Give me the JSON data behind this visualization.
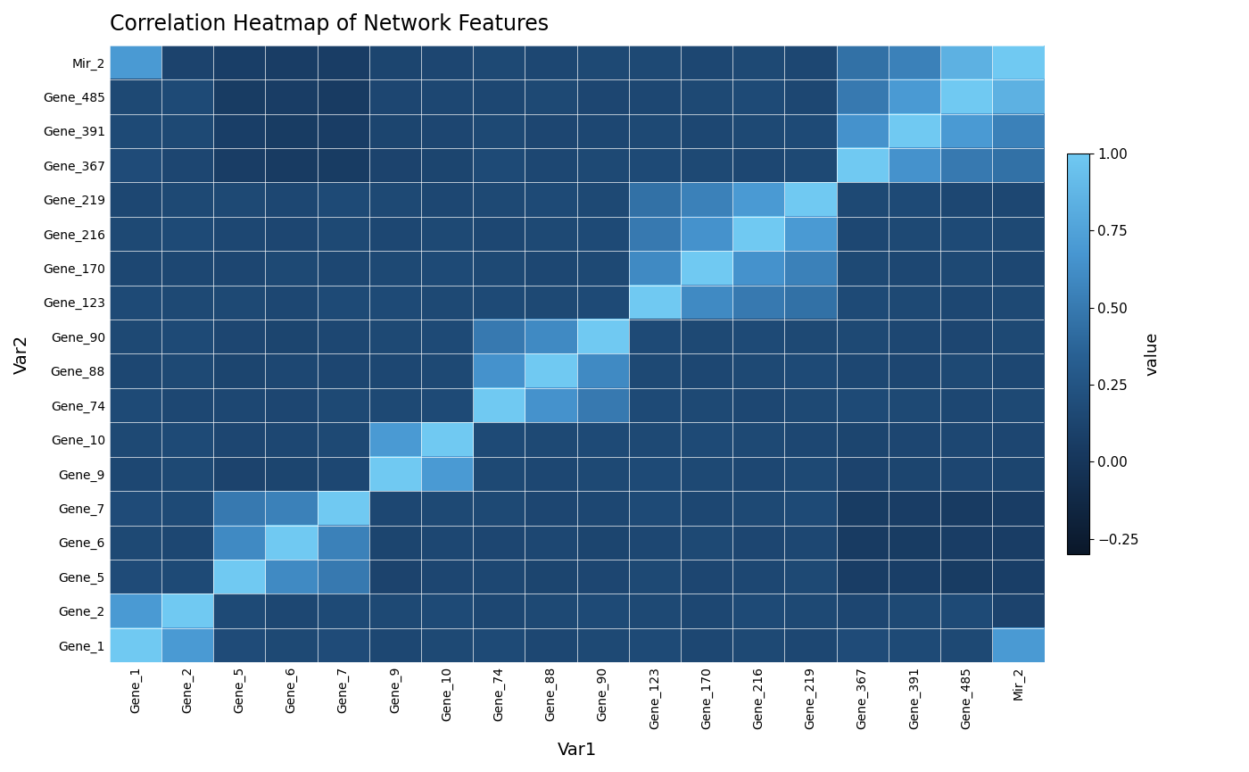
{
  "labels": [
    "Gene_1",
    "Gene_2",
    "Gene_5",
    "Gene_6",
    "Gene_7",
    "Gene_9",
    "Gene_10",
    "Gene_74",
    "Gene_88",
    "Gene_90",
    "Gene_123",
    "Gene_170",
    "Gene_216",
    "Gene_219",
    "Gene_367",
    "Gene_391",
    "Gene_485",
    "Mir_2"
  ],
  "title": "Correlation Heatmap of Network Features",
  "xlabel": "Var1",
  "ylabel": "Var2",
  "colorbar_label": "value",
  "vmin": -0.3,
  "vmax": 1.0,
  "figsize": [
    14.0,
    8.65
  ],
  "dpi": 100,
  "background_color": "#ffffff",
  "colorbar_ticks": [
    1.0,
    0.75,
    0.5,
    0.25,
    0.0,
    -0.25
  ],
  "corr_matrix": [
    [
      1.0,
      0.7,
      0.18,
      0.16,
      0.18,
      0.15,
      0.16,
      0.17,
      0.15,
      0.16,
      0.17,
      0.15,
      0.16,
      0.15,
      0.18,
      0.17,
      0.16,
      0.7
    ],
    [
      0.7,
      1.0,
      0.17,
      0.15,
      0.17,
      0.16,
      0.17,
      0.15,
      0.16,
      0.17,
      0.16,
      0.15,
      0.17,
      0.16,
      0.14,
      0.16,
      0.17,
      0.12
    ],
    [
      0.18,
      0.17,
      1.0,
      0.6,
      0.5,
      0.12,
      0.14,
      0.15,
      0.13,
      0.14,
      0.16,
      0.14,
      0.15,
      0.16,
      0.07,
      0.08,
      0.06,
      0.08
    ],
    [
      0.16,
      0.15,
      0.6,
      1.0,
      0.55,
      0.13,
      0.15,
      0.14,
      0.15,
      0.13,
      0.15,
      0.16,
      0.14,
      0.15,
      0.05,
      0.06,
      0.07,
      0.07
    ],
    [
      0.18,
      0.17,
      0.5,
      0.55,
      1.0,
      0.15,
      0.16,
      0.16,
      0.14,
      0.15,
      0.17,
      0.15,
      0.16,
      0.17,
      0.06,
      0.07,
      0.05,
      0.07
    ],
    [
      0.15,
      0.16,
      0.12,
      0.13,
      0.15,
      1.0,
      0.7,
      0.16,
      0.15,
      0.16,
      0.17,
      0.16,
      0.15,
      0.16,
      0.12,
      0.13,
      0.14,
      0.13
    ],
    [
      0.16,
      0.17,
      0.14,
      0.15,
      0.16,
      0.7,
      1.0,
      0.17,
      0.16,
      0.17,
      0.16,
      0.17,
      0.16,
      0.15,
      0.13,
      0.14,
      0.15,
      0.14
    ],
    [
      0.17,
      0.15,
      0.15,
      0.14,
      0.16,
      0.16,
      0.17,
      1.0,
      0.65,
      0.5,
      0.17,
      0.16,
      0.15,
      0.16,
      0.17,
      0.16,
      0.15,
      0.16
    ],
    [
      0.15,
      0.16,
      0.13,
      0.15,
      0.14,
      0.15,
      0.16,
      0.65,
      1.0,
      0.6,
      0.16,
      0.15,
      0.16,
      0.17,
      0.15,
      0.14,
      0.16,
      0.15
    ],
    [
      0.16,
      0.17,
      0.14,
      0.13,
      0.15,
      0.16,
      0.17,
      0.5,
      0.6,
      1.0,
      0.17,
      0.16,
      0.17,
      0.16,
      0.16,
      0.15,
      0.14,
      0.16
    ],
    [
      0.17,
      0.16,
      0.16,
      0.15,
      0.17,
      0.17,
      0.16,
      0.17,
      0.16,
      0.17,
      1.0,
      0.6,
      0.5,
      0.45,
      0.17,
      0.16,
      0.15,
      0.16
    ],
    [
      0.15,
      0.15,
      0.14,
      0.16,
      0.15,
      0.16,
      0.17,
      0.16,
      0.15,
      0.16,
      0.6,
      1.0,
      0.65,
      0.55,
      0.16,
      0.15,
      0.16,
      0.15
    ],
    [
      0.16,
      0.17,
      0.15,
      0.14,
      0.16,
      0.15,
      0.16,
      0.15,
      0.16,
      0.17,
      0.5,
      0.65,
      1.0,
      0.7,
      0.15,
      0.16,
      0.17,
      0.16
    ],
    [
      0.15,
      0.16,
      0.16,
      0.15,
      0.17,
      0.16,
      0.15,
      0.16,
      0.17,
      0.16,
      0.45,
      0.55,
      0.7,
      1.0,
      0.16,
      0.17,
      0.15,
      0.15
    ],
    [
      0.18,
      0.14,
      0.07,
      0.05,
      0.06,
      0.12,
      0.13,
      0.17,
      0.15,
      0.16,
      0.17,
      0.16,
      0.15,
      0.16,
      1.0,
      0.65,
      0.5,
      0.45
    ],
    [
      0.17,
      0.16,
      0.08,
      0.06,
      0.07,
      0.13,
      0.14,
      0.16,
      0.14,
      0.15,
      0.16,
      0.15,
      0.16,
      0.17,
      0.65,
      1.0,
      0.7,
      0.55
    ],
    [
      0.16,
      0.17,
      0.06,
      0.07,
      0.05,
      0.14,
      0.15,
      0.15,
      0.16,
      0.14,
      0.15,
      0.16,
      0.17,
      0.15,
      0.5,
      0.7,
      1.0,
      0.85
    ],
    [
      0.7,
      0.12,
      0.08,
      0.07,
      0.07,
      0.13,
      0.14,
      0.16,
      0.15,
      0.16,
      0.16,
      0.15,
      0.16,
      0.15,
      0.45,
      0.55,
      0.85,
      1.0
    ]
  ]
}
